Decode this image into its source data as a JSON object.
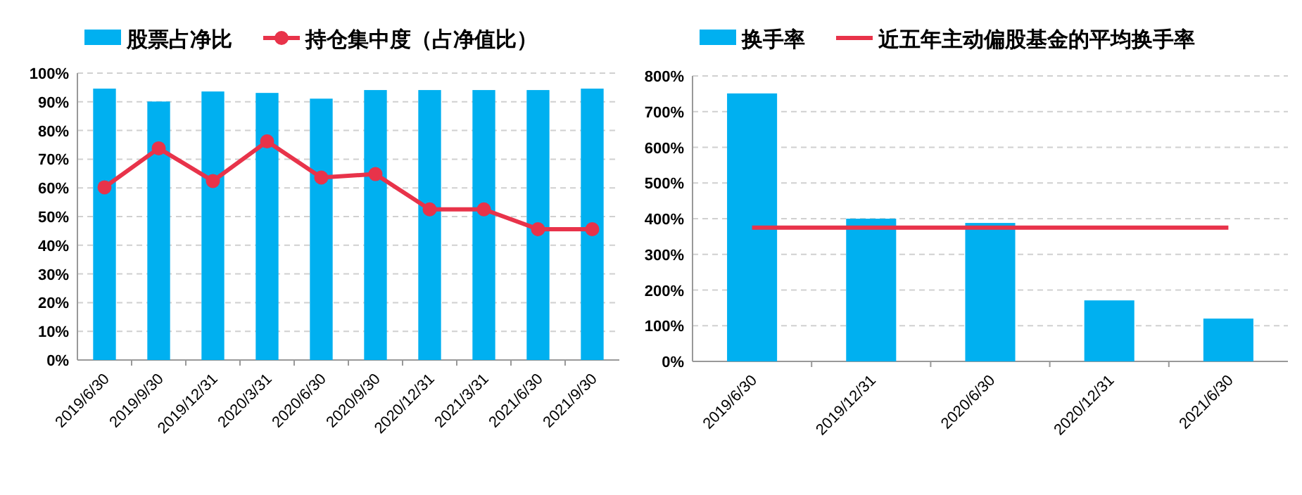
{
  "chart_data": [
    {
      "type": "bar",
      "categories": [
        "2019/6/30",
        "2019/9/30",
        "2019/12/31",
        "2020/3/31",
        "2020/6/30",
        "2020/9/30",
        "2020/12/31",
        "2021/3/31",
        "2021/6/30",
        "2021/9/30"
      ],
      "series": [
        {
          "name": "股票占净比",
          "color": "#00b0f0",
          "values": [
            94.6,
            90.1,
            93.6,
            93.1,
            91.1,
            94.1,
            94.1,
            94.1,
            94.1,
            94.6
          ]
        },
        {
          "name": "持仓集中度（占净值比）",
          "type": "line",
          "color": "#e8334a",
          "marker": "circle",
          "values": [
            60.2,
            73.8,
            62.4,
            76.2,
            63.6,
            64.8,
            52.5,
            52.5,
            45.6,
            45.6
          ]
        }
      ],
      "ylim": [
        0,
        100
      ],
      "yticks": [
        {
          "value": 0,
          "label": "0%"
        },
        {
          "value": 10,
          "label": "10%"
        },
        {
          "value": 20,
          "label": "20%"
        },
        {
          "value": 30,
          "label": "30%"
        },
        {
          "value": 40,
          "label": "40%"
        },
        {
          "value": 50,
          "label": "50%"
        },
        {
          "value": 60,
          "label": "60%"
        },
        {
          "value": 70,
          "label": "70%"
        },
        {
          "value": 80,
          "label": "80%"
        },
        {
          "value": 90,
          "label": "90%"
        },
        {
          "value": 100,
          "label": "100%"
        }
      ],
      "grid": "y",
      "legend": "top"
    },
    {
      "type": "bar",
      "categories": [
        "2019/6/30",
        "2019/12/31",
        "2020/6/30",
        "2020/12/31",
        "2021/6/30"
      ],
      "series": [
        {
          "name": "换手率",
          "color": "#00b0f0",
          "values": [
            751,
            400,
            388,
            171,
            120
          ]
        },
        {
          "name": "近五年主动偏股基金的平均换手率",
          "type": "line",
          "color": "#e8334a",
          "marker": "none",
          "values": [
            375,
            375,
            375,
            375,
            375
          ]
        }
      ],
      "ylim": [
        0,
        800
      ],
      "yticks": [
        {
          "value": 0,
          "label": "0%"
        },
        {
          "value": 100,
          "label": "100%"
        },
        {
          "value": 200,
          "label": "200%"
        },
        {
          "value": 300,
          "label": "300%"
        },
        {
          "value": 400,
          "label": "400%"
        },
        {
          "value": 500,
          "label": "500%"
        },
        {
          "value": 600,
          "label": "600%"
        },
        {
          "value": 700,
          "label": "700%"
        },
        {
          "value": 800,
          "label": "800%"
        }
      ],
      "grid": "y",
      "legend": "top"
    }
  ]
}
